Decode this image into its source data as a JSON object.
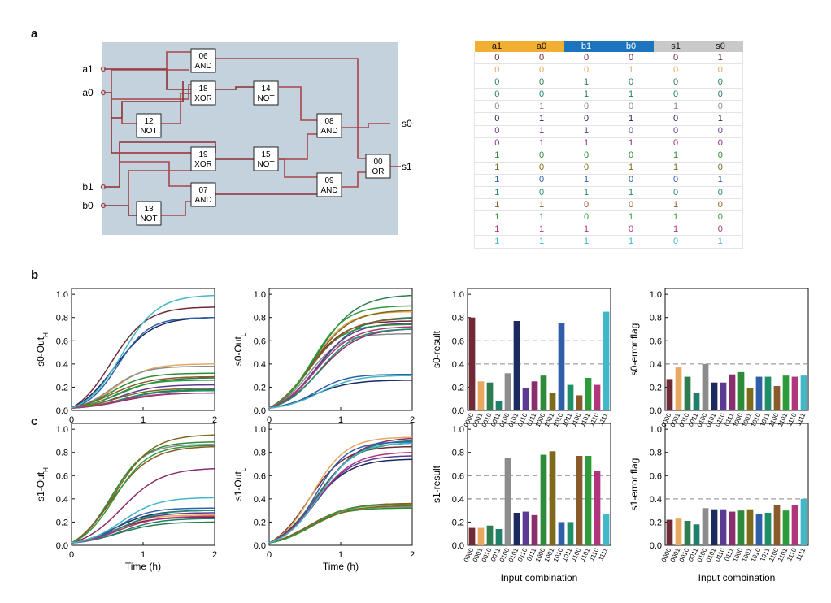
{
  "panel_labels": {
    "a": "a",
    "b": "b",
    "c": "c"
  },
  "circuit": {
    "inputs": [
      "a1",
      "a0",
      "b1",
      "b0"
    ],
    "outputs": [
      "s0",
      "s1"
    ],
    "gates": [
      {
        "id": "06",
        "type": "AND"
      },
      {
        "id": "18",
        "type": "XOR"
      },
      {
        "id": "12",
        "type": "NOT"
      },
      {
        "id": "14",
        "type": "NOT"
      },
      {
        "id": "08",
        "type": "AND"
      },
      {
        "id": "19",
        "type": "XOR"
      },
      {
        "id": "15",
        "type": "NOT"
      },
      {
        "id": "07",
        "type": "AND"
      },
      {
        "id": "09",
        "type": "AND"
      },
      {
        "id": "13",
        "type": "NOT"
      },
      {
        "id": "00",
        "type": "OR"
      }
    ],
    "colors": {
      "background": "#c3d2dc",
      "wire": "#a8444a",
      "wire_dark": "#8a2f35",
      "output_wire": "#e8a0a0"
    }
  },
  "truth_table": {
    "headers": [
      "a1",
      "a0",
      "b1",
      "b0",
      "s1",
      "s0"
    ],
    "header_colors": [
      "#f0ae33",
      "#f0ae33",
      "#1c75bc",
      "#1c75bc",
      "#c9c9c9",
      "#c9c9c9"
    ],
    "rows": [
      [
        "0",
        "0",
        "0",
        "0",
        "0",
        "1"
      ],
      [
        "0",
        "0",
        "0",
        "1",
        "0",
        "0"
      ],
      [
        "0",
        "0",
        "1",
        "0",
        "0",
        "0"
      ],
      [
        "0",
        "0",
        "1",
        "1",
        "0",
        "0"
      ],
      [
        "0",
        "1",
        "0",
        "0",
        "1",
        "0"
      ],
      [
        "0",
        "1",
        "0",
        "1",
        "0",
        "1"
      ],
      [
        "0",
        "1",
        "1",
        "0",
        "0",
        "0"
      ],
      [
        "0",
        "1",
        "1",
        "1",
        "0",
        "0"
      ],
      [
        "1",
        "0",
        "0",
        "0",
        "1",
        "0"
      ],
      [
        "1",
        "0",
        "0",
        "1",
        "1",
        "0"
      ],
      [
        "1",
        "0",
        "1",
        "0",
        "0",
        "1"
      ],
      [
        "1",
        "0",
        "1",
        "1",
        "0",
        "0"
      ],
      [
        "1",
        "1",
        "0",
        "0",
        "1",
        "0"
      ],
      [
        "1",
        "1",
        "0",
        "1",
        "1",
        "0"
      ],
      [
        "1",
        "1",
        "1",
        "0",
        "1",
        "0"
      ],
      [
        "1",
        "1",
        "1",
        "1",
        "0",
        "1"
      ]
    ],
    "row_colors": [
      "#6e2a35",
      "#e8a860",
      "#2e7d4f",
      "#1f7f6a",
      "#8c8c8c",
      "#1a2a5e",
      "#5c3a93",
      "#8b2e6e",
      "#2e8b3a",
      "#7d6a1a",
      "#2f5fa8",
      "#1f8f6a",
      "#8b5a2b",
      "#2e9b3a",
      "#b0357a",
      "#40b8c8"
    ]
  },
  "chart_data": [
    {
      "type": "line",
      "ylabel": "s0-Out",
      "ylabel_sub": "H",
      "xlabel": "",
      "xlim": [
        0,
        2
      ],
      "ylim": [
        0,
        1.05
      ],
      "xticks": [
        "0",
        "1",
        "2"
      ],
      "yticks": [
        "0.0",
        "0.2",
        "0.4",
        "0.6",
        "0.8",
        "1.0"
      ],
      "final_values": [
        0.89,
        0.4,
        0.28,
        0.18,
        0.38,
        0.8,
        0.22,
        0.15,
        0.32,
        0.19,
        0.8,
        0.17,
        0.29,
        0.26,
        0.15,
        0.99
      ]
    },
    {
      "type": "line",
      "ylabel": "s0-Out",
      "ylabel_sub": "L",
      "xlabel": "",
      "xlim": [
        0,
        2
      ],
      "ylim": [
        0,
        1.05
      ],
      "xticks": [
        "0",
        "1",
        "2"
      ],
      "yticks": [
        "0.0",
        "0.2",
        "0.4",
        "0.6",
        "0.8",
        "1.0"
      ],
      "final_values": [
        0.77,
        0.85,
        0.99,
        0.8,
        0.66,
        0.26,
        0.75,
        0.7,
        0.74,
        0.86,
        0.31,
        0.7,
        0.79,
        0.9,
        0.72,
        0.3
      ]
    },
    {
      "type": "bar",
      "ylabel": "s0-result",
      "xlabel": "",
      "ylim": [
        0,
        1.05
      ],
      "yticks": [
        "0.0",
        "0.2",
        "0.4",
        "0.6",
        "0.8",
        "1.0"
      ],
      "categories": [
        "0000",
        "0001",
        "0010",
        "0011",
        "0100",
        "0101",
        "0110",
        "0111",
        "1000",
        "1001",
        "1010",
        "1011",
        "1100",
        "1101",
        "1110",
        "1111"
      ],
      "values": [
        0.8,
        0.25,
        0.24,
        0.08,
        0.32,
        0.77,
        0.19,
        0.25,
        0.3,
        0.15,
        0.75,
        0.22,
        0.13,
        0.28,
        0.22,
        0.85
      ],
      "reference_lines": [
        0.4,
        0.6
      ]
    },
    {
      "type": "bar",
      "ylabel": "s0-error flag",
      "xlabel": "",
      "ylim": [
        0,
        1.05
      ],
      "yticks": [
        "0.0",
        "0.2",
        "0.4",
        "0.6",
        "0.8",
        "1.0"
      ],
      "categories": [
        "0000",
        "0001",
        "0010",
        "0011",
        "0100",
        "0101",
        "0110",
        "0111",
        "1000",
        "1001",
        "1010",
        "1011",
        "1100",
        "1101",
        "1110",
        "1111"
      ],
      "values": [
        0.27,
        0.37,
        0.29,
        0.15,
        0.4,
        0.24,
        0.24,
        0.31,
        0.33,
        0.19,
        0.29,
        0.29,
        0.21,
        0.3,
        0.29,
        0.3
      ],
      "reference_lines": [
        0.4
      ]
    },
    {
      "type": "line",
      "ylabel": "s1-Out",
      "ylabel_sub": "H",
      "xlabel": "Time (h)",
      "xlim": [
        0,
        2
      ],
      "ylim": [
        0,
        1.05
      ],
      "xticks": [
        "0",
        "1",
        "2"
      ],
      "yticks": [
        "0.0",
        "0.2",
        "0.4",
        "0.6",
        "0.8",
        "1.0"
      ],
      "final_values": [
        0.24,
        0.26,
        0.2,
        0.23,
        0.87,
        0.3,
        0.28,
        0.66,
        0.89,
        0.95,
        0.32,
        0.3,
        0.85,
        0.86,
        0.25,
        0.41
      ]
    },
    {
      "type": "line",
      "ylabel": "s1-Out",
      "ylabel_sub": "L",
      "xlabel": "Time (h)",
      "xlim": [
        0,
        2
      ],
      "ylim": [
        0,
        1.05
      ],
      "xticks": [
        "0",
        "1",
        "2"
      ],
      "yticks": [
        "0.0",
        "0.2",
        "0.4",
        "0.6",
        "0.8",
        "1.0"
      ],
      "final_values": [
        0.85,
        0.93,
        0.88,
        0.9,
        0.33,
        0.74,
        0.77,
        0.92,
        0.32,
        0.34,
        0.89,
        0.88,
        0.36,
        0.35,
        0.8,
        0.88
      ]
    },
    {
      "type": "bar",
      "ylabel": "s1-result",
      "xlabel": "Input combination",
      "ylim": [
        0,
        1.05
      ],
      "yticks": [
        "0.0",
        "0.2",
        "0.4",
        "0.6",
        "0.8",
        "1.0"
      ],
      "categories": [
        "0000",
        "0001",
        "0010",
        "0011",
        "0100",
        "0101",
        "0110",
        "0111",
        "1000",
        "1001",
        "1010",
        "1011",
        "1100",
        "1101",
        "1110",
        "1111"
      ],
      "values": [
        0.15,
        0.15,
        0.17,
        0.14,
        0.75,
        0.28,
        0.29,
        0.26,
        0.78,
        0.81,
        0.2,
        0.2,
        0.77,
        0.77,
        0.64,
        0.27
      ],
      "reference_lines": [
        0.4,
        0.6
      ]
    },
    {
      "type": "bar",
      "ylabel": "s1-error flag",
      "xlabel": "Input combination",
      "ylim": [
        0,
        1.05
      ],
      "yticks": [
        "0.0",
        "0.2",
        "0.4",
        "0.6",
        "0.8",
        "1.0"
      ],
      "categories": [
        "0000",
        "0001",
        "0010",
        "0011",
        "0100",
        "0101",
        "0110",
        "0111",
        "1000",
        "1001",
        "1010",
        "1011",
        "1100",
        "1101",
        "1110",
        "1111"
      ],
      "values": [
        0.22,
        0.23,
        0.21,
        0.18,
        0.32,
        0.31,
        0.31,
        0.29,
        0.3,
        0.31,
        0.27,
        0.28,
        0.35,
        0.3,
        0.35,
        0.4
      ],
      "reference_lines": [
        0.4
      ]
    }
  ],
  "series_colors": [
    "#6e2a35",
    "#e8a860",
    "#2e7d4f",
    "#1f7f6a",
    "#8c8c8c",
    "#1a2a5e",
    "#5c3a93",
    "#8b2e6e",
    "#2e8b3a",
    "#7d6a1a",
    "#2f5fa8",
    "#1f8f6a",
    "#8b5a2b",
    "#2e9b3a",
    "#b0357a",
    "#40b8c8"
  ]
}
